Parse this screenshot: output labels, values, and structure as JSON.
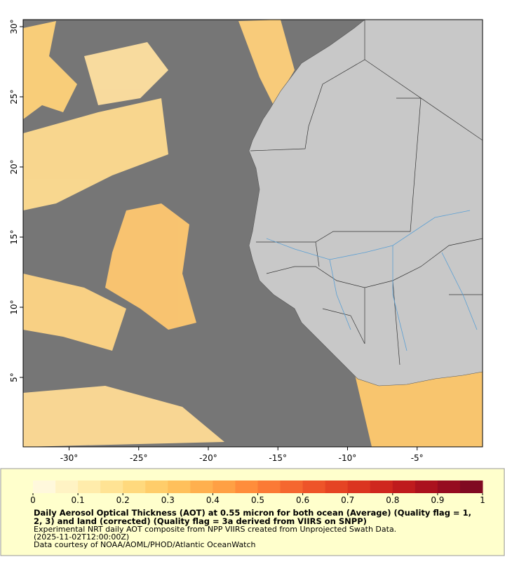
{
  "map": {
    "xlim": [
      -33.3,
      -0.3
    ],
    "ylim": [
      0.05,
      30.5
    ],
    "xticks": [
      {
        "value": -30,
        "label": "-30°"
      },
      {
        "value": -25,
        "label": "-25°"
      },
      {
        "value": -20,
        "label": "-20°"
      },
      {
        "value": -15,
        "label": "-15°"
      },
      {
        "value": -10,
        "label": "-10°"
      },
      {
        "value": -5,
        "label": "-5°"
      }
    ],
    "yticks": [
      {
        "value": 5,
        "label": "5°"
      },
      {
        "value": 10,
        "label": "10°"
      },
      {
        "value": 15,
        "label": "15°"
      },
      {
        "value": 20,
        "label": "20°"
      },
      {
        "value": 25,
        "label": "25°"
      },
      {
        "value": 30,
        "label": "30°"
      }
    ]
  },
  "colorbar": {
    "range": [
      0,
      1
    ],
    "ticks": [
      0,
      0.1,
      0.2,
      0.3,
      0.4,
      0.5,
      0.6,
      0.7,
      0.8,
      0.9,
      1
    ],
    "colors": [
      "#fff8dc",
      "#fff3c4",
      "#ffecab",
      "#ffe394",
      "#ffd97d",
      "#ffcd6a",
      "#ffc05b",
      "#ffb04e",
      "#ffa044",
      "#ff8d3b",
      "#fb7a35",
      "#f5672f",
      "#ee5429",
      "#e54424",
      "#db3520",
      "#cf271e",
      "#bf1b1d",
      "#ab121e",
      "#960c20",
      "#800a22"
    ]
  },
  "caption": {
    "title": "Daily Aerosol Optical Thickness (AOT) at 0.55 micron for both ocean (Average) (Quality flag = 1, 2, 3) and land (corrected) (Quality flag = 3a derived from VIIRS on SNPP)",
    "lines": [
      "Experimental NRT daily AOT composite from NPP VIIRS created from Unprojected Swath Data.",
      "(2025-11-02T12:00:00Z)",
      "Data courtesy of NOAA/AOML/PHOD/Atlantic OceanWatch"
    ]
  }
}
